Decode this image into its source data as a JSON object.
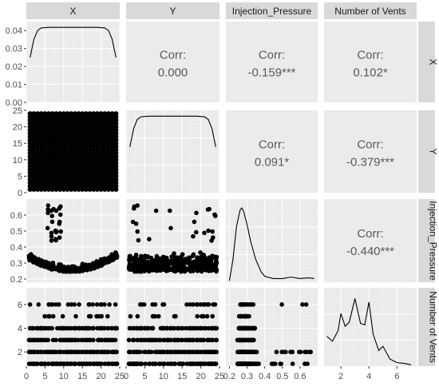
{
  "chart_data": {
    "type": "scatter",
    "variables": [
      "X",
      "Y",
      "Injection_Pressure",
      "Number of Vents"
    ],
    "row_strip_labels": [
      "X",
      "Y",
      "Injection_Pressure",
      "Number of Vents"
    ],
    "ranges": {
      "X": [
        0,
        25
      ],
      "Y": [
        0,
        25
      ],
      "Injection_Pressure": [
        0.18,
        0.7
      ],
      "Number of Vents": [
        0.8,
        7.4
      ]
    },
    "axis_ticks": {
      "X": [
        "0",
        "5",
        "10",
        "15",
        "20",
        "25"
      ],
      "Y": [
        "0",
        "5",
        "10",
        "15",
        "20",
        "25"
      ],
      "Injection_Pressure": [
        "0.2",
        "0.3",
        "0.4",
        "0.5",
        "0.6"
      ],
      "Number of Vents": [
        "2",
        "4",
        "6"
      ]
    },
    "x_density_ticks": [
      "0.00",
      "0.01",
      "0.02",
      "0.03",
      "0.04"
    ],
    "correlations": [
      {
        "row": 0,
        "col": 1,
        "label": "Corr:",
        "value": "0.000"
      },
      {
        "row": 0,
        "col": 2,
        "label": "Corr:",
        "value": "-0.159***"
      },
      {
        "row": 0,
        "col": 3,
        "label": "Corr:",
        "value": "0.102*"
      },
      {
        "row": 1,
        "col": 2,
        "label": "Corr:",
        "value": "0.091*"
      },
      {
        "row": 1,
        "col": 3,
        "label": "Corr:",
        "value": "-0.379***"
      },
      {
        "row": 2,
        "col": 3,
        "label": "Corr:",
        "value": "-0.440***"
      }
    ],
    "densities": {
      "X": {
        "x": [
          1,
          2,
          3,
          4,
          6,
          10,
          15,
          19,
          21,
          22,
          23,
          24
        ],
        "y": [
          0.025,
          0.035,
          0.04,
          0.0415,
          0.0418,
          0.0418,
          0.0418,
          0.0418,
          0.0415,
          0.04,
          0.035,
          0.025
        ]
      },
      "Y": {
        "x": [
          1,
          2,
          3,
          4,
          6,
          10,
          15,
          19,
          21,
          22,
          23,
          24
        ],
        "y": [
          0.025,
          0.035,
          0.04,
          0.0415,
          0.0418,
          0.0418,
          0.0418,
          0.0418,
          0.0415,
          0.04,
          0.035,
          0.025
        ]
      },
      "Injection_Pressure": {
        "x": [
          0.2,
          0.22,
          0.24,
          0.26,
          0.27,
          0.28,
          0.3,
          0.32,
          0.35,
          0.38,
          0.4,
          0.45,
          0.5,
          0.55,
          0.6,
          0.65,
          0.68
        ],
        "y": [
          0.02,
          0.3,
          0.75,
          0.97,
          1.0,
          0.96,
          0.78,
          0.55,
          0.3,
          0.14,
          0.08,
          0.05,
          0.05,
          0.07,
          0.05,
          0.06,
          0.05
        ]
      },
      "Number of Vents": {
        "x": [
          1,
          1.4,
          1.8,
          2.0,
          2.3,
          2.6,
          3.0,
          3.4,
          3.7,
          4.0,
          4.3,
          4.7,
          5.0,
          5.5,
          6.0,
          6.5,
          7.0
        ],
        "y": [
          0.42,
          0.35,
          0.5,
          0.74,
          0.56,
          0.62,
          0.95,
          0.6,
          0.58,
          0.9,
          0.45,
          0.22,
          0.28,
          0.1,
          0.05,
          0.04,
          0.02
        ]
      }
    }
  }
}
